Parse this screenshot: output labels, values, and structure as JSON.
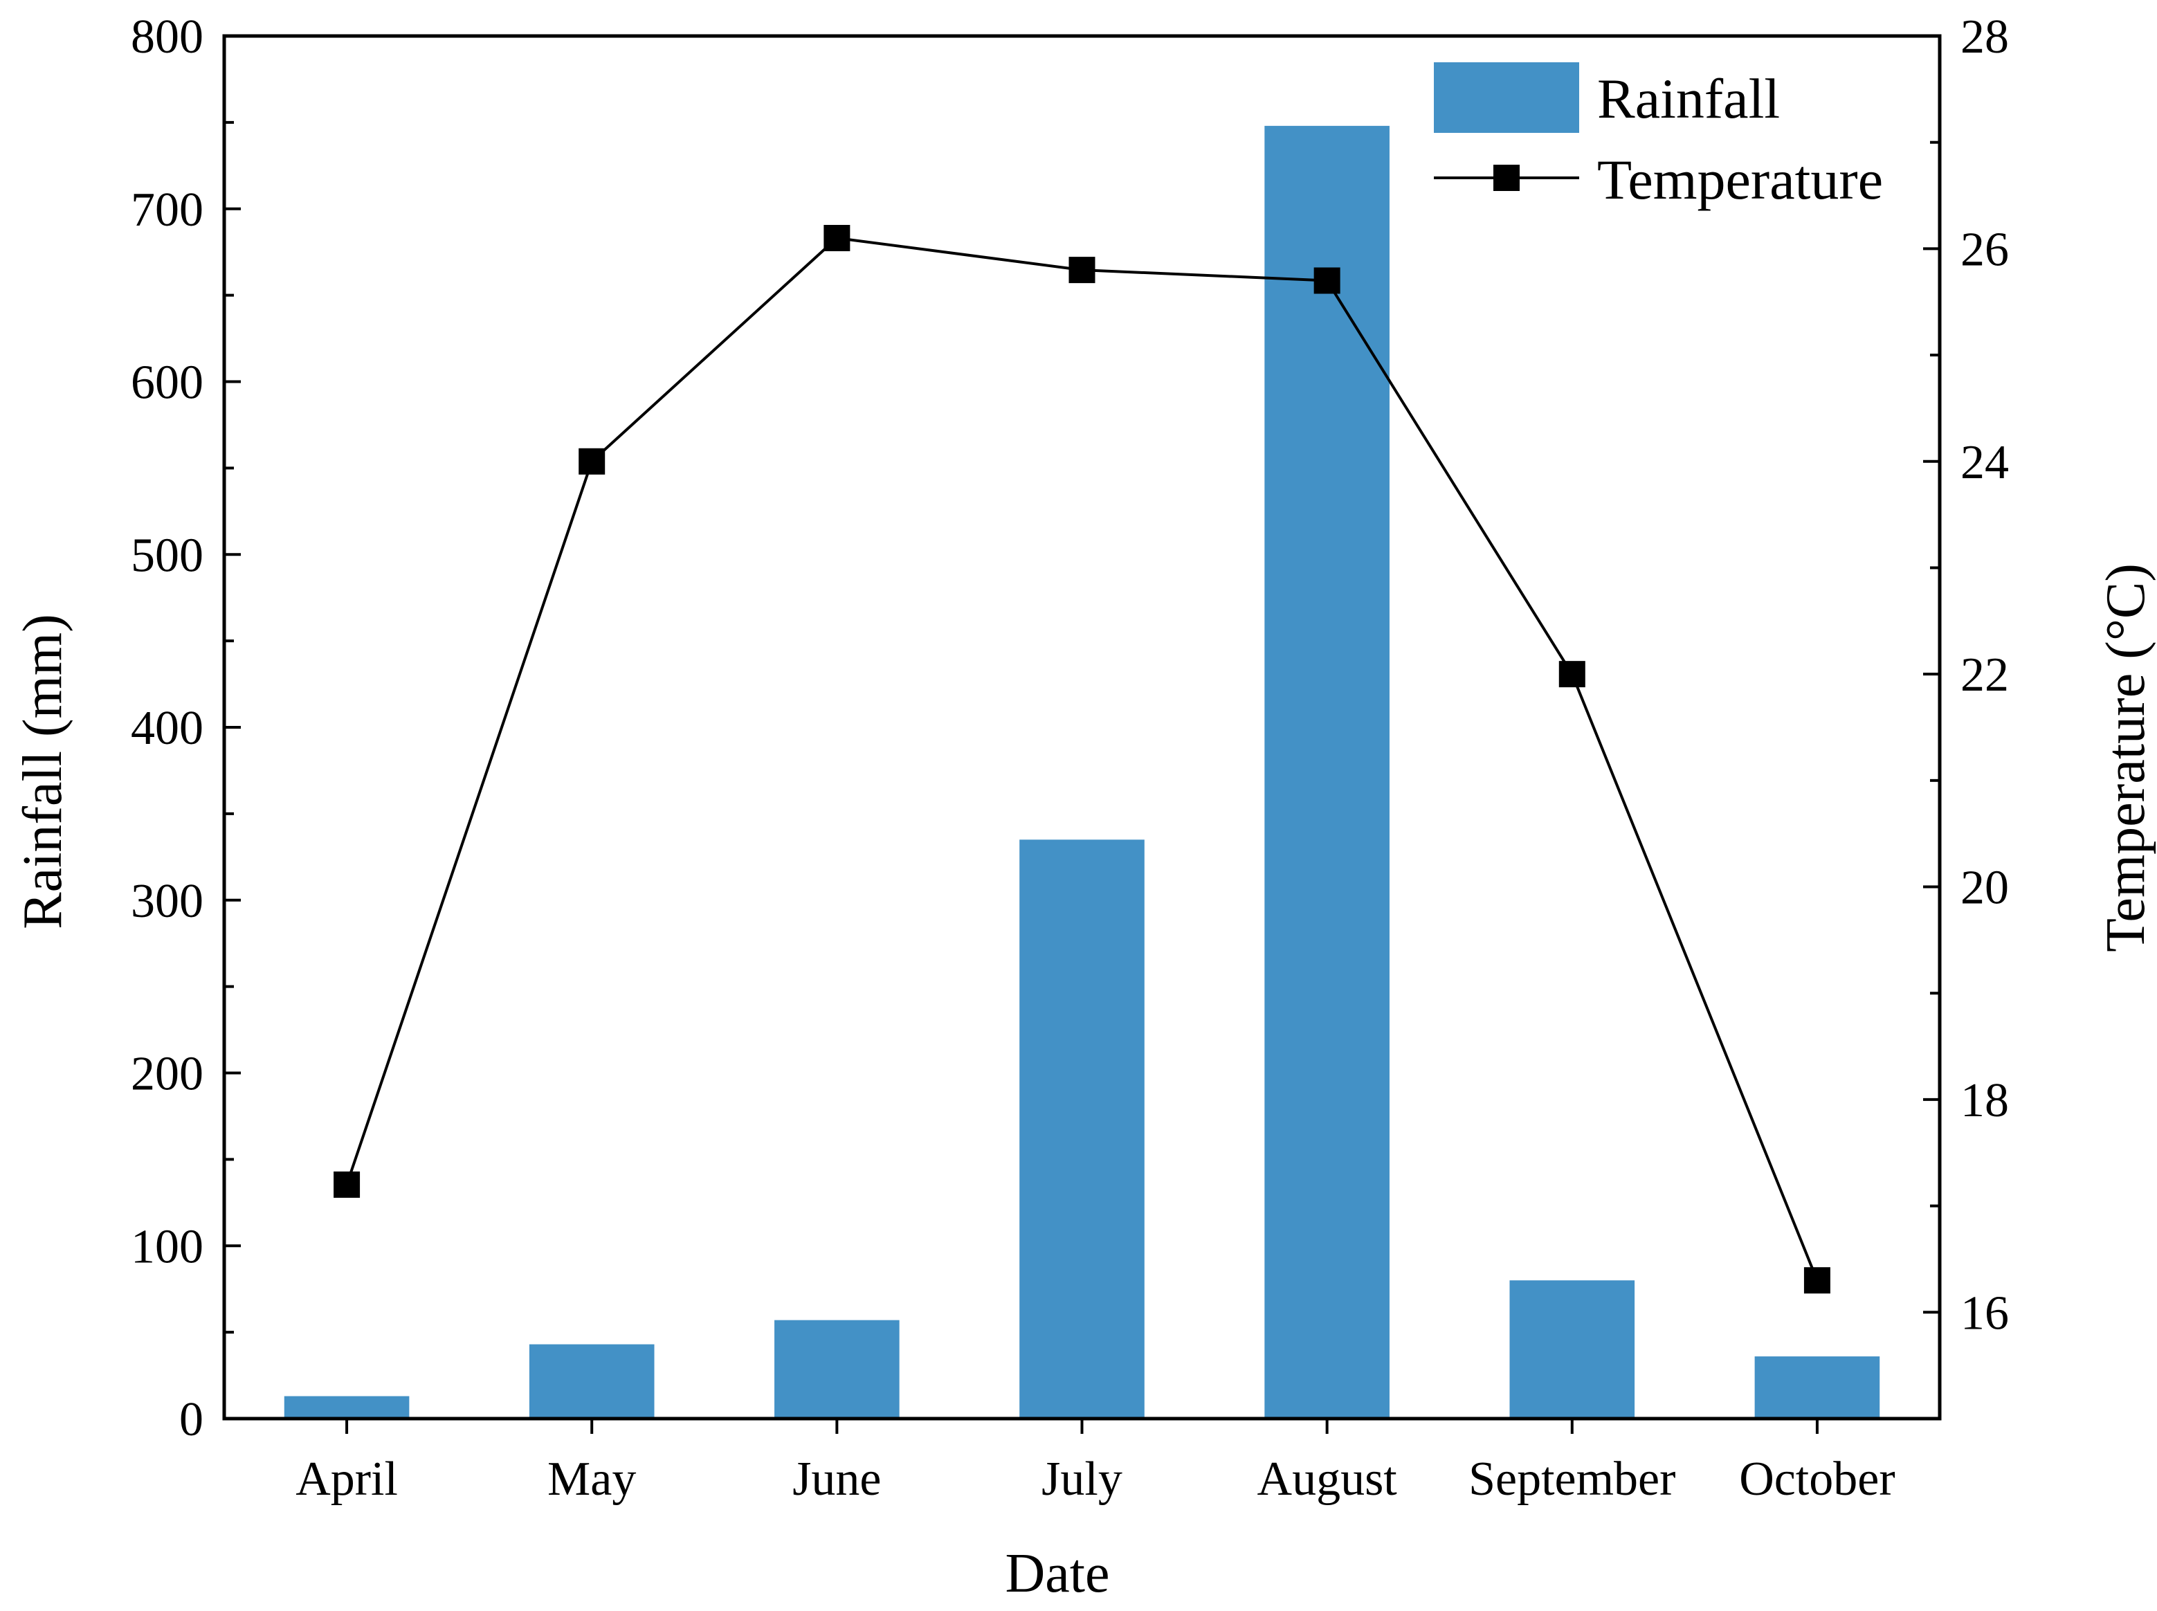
{
  "chart_data": {
    "type": "bar+line",
    "title": "",
    "xlabel": "Date",
    "ylabel_left": "Rainfall (mm)",
    "ylabel_right": "Temperature (°C)",
    "categories": [
      "April",
      "May",
      "June",
      "July",
      "August",
      "September",
      "October"
    ],
    "series": [
      {
        "name": "Rainfall",
        "type": "bar",
        "axis": "left",
        "color": "#4391c6",
        "values": [
          13,
          43,
          57,
          335,
          748,
          80,
          36
        ]
      },
      {
        "name": "Temperature",
        "type": "line",
        "axis": "right",
        "color": "#000000",
        "values": [
          17.2,
          24.0,
          26.1,
          25.8,
          25.7,
          22.0,
          16.3
        ]
      }
    ],
    "ylim_left": [
      0,
      800
    ],
    "ylim_right": [
      15,
      28
    ],
    "yticks_left": [
      0,
      100,
      200,
      300,
      400,
      500,
      600,
      700,
      800
    ],
    "yticks_right": [
      16,
      18,
      20,
      22,
      24,
      26,
      28
    ],
    "legend": {
      "position": "top-right",
      "labels": [
        "Rainfall",
        "Temperature"
      ]
    },
    "grid": false
  }
}
